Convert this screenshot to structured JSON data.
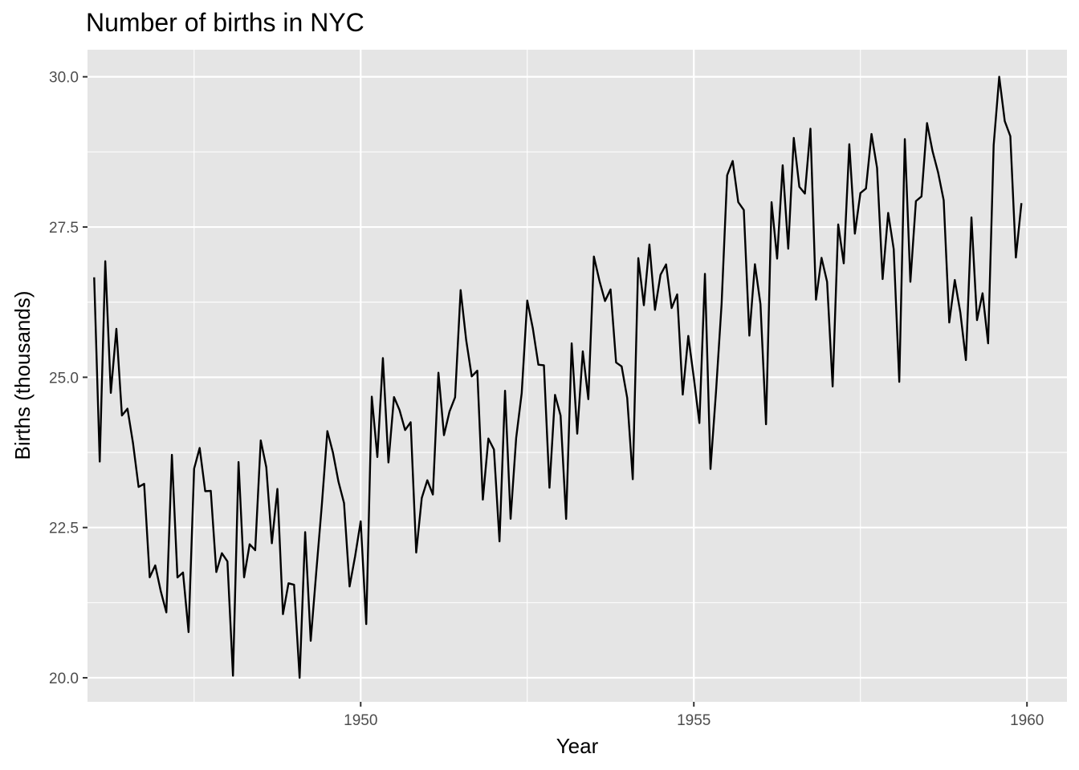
{
  "chart_data": {
    "type": "line",
    "title": "Number of births in NYC",
    "xlabel": "Year",
    "ylabel": "Births (thousands)",
    "xlim": [
      1945.9,
      1960.6
    ],
    "ylim": [
      19.6,
      30.45
    ],
    "x_ticks": [
      1950,
      1955,
      1960
    ],
    "x_tick_labels": [
      "1950",
      "1955",
      "1960"
    ],
    "y_ticks": [
      20.0,
      22.5,
      25.0,
      27.5,
      30.0
    ],
    "y_tick_labels": [
      "20.0",
      "22.5",
      "25.0",
      "27.5",
      "30.0"
    ],
    "grid": true,
    "legend": "none",
    "line_color": "#000000",
    "panel_color": "#e5e5e5",
    "grid_color": "#ffffff",
    "start": [
      1946,
      1
    ],
    "frequency": 12,
    "series": [
      {
        "values": [
          26.663,
          23.598,
          26.931,
          24.74,
          25.806,
          24.364,
          24.477,
          23.901,
          23.175,
          23.227,
          21.672,
          21.87,
          21.439,
          21.089,
          23.709,
          21.669,
          21.752,
          20.761,
          23.479,
          23.824,
          23.105,
          23.11,
          21.759,
          22.073,
          21.937,
          20.035,
          23.59,
          21.672,
          22.222,
          22.123,
          23.95,
          23.504,
          22.238,
          23.142,
          21.059,
          21.573,
          21.548,
          20.0,
          22.424,
          20.615,
          21.761,
          22.874,
          24.104,
          23.748,
          23.262,
          22.907,
          21.519,
          22.025,
          22.604,
          20.894,
          24.677,
          23.673,
          25.32,
          23.583,
          24.671,
          24.454,
          24.122,
          24.252,
          22.084,
          22.991,
          23.287,
          23.049,
          25.076,
          24.037,
          24.43,
          24.667,
          26.451,
          25.618,
          25.014,
          25.11,
          22.964,
          23.981,
          23.798,
          22.27,
          24.775,
          22.646,
          23.988,
          24.737,
          26.276,
          25.816,
          25.21,
          25.199,
          23.162,
          24.707,
          24.364,
          22.644,
          25.565,
          24.062,
          25.431,
          24.635,
          27.009,
          26.606,
          26.268,
          26.462,
          25.246,
          25.18,
          24.657,
          23.304,
          26.982,
          26.199,
          27.21,
          26.122,
          26.706,
          26.878,
          26.152,
          26.379,
          24.712,
          25.688,
          24.99,
          24.239,
          26.721,
          23.475,
          24.767,
          26.219,
          28.361,
          28.599,
          27.914,
          27.784,
          25.693,
          26.881,
          26.217,
          24.218,
          27.914,
          26.975,
          28.527,
          27.139,
          28.982,
          28.169,
          28.056,
          29.136,
          26.291,
          26.987,
          26.589,
          24.848,
          27.543,
          26.896,
          28.878,
          27.39,
          28.065,
          28.141,
          29.048,
          28.484,
          26.634,
          27.735,
          27.132,
          24.924,
          28.963,
          26.589,
          27.931,
          28.009,
          29.229,
          28.759,
          28.405,
          27.945,
          25.912,
          26.619,
          26.076,
          25.286,
          27.66,
          25.951,
          26.398,
          25.565,
          28.865,
          30.0,
          29.261,
          29.012,
          26.992,
          27.897
        ]
      }
    ]
  }
}
